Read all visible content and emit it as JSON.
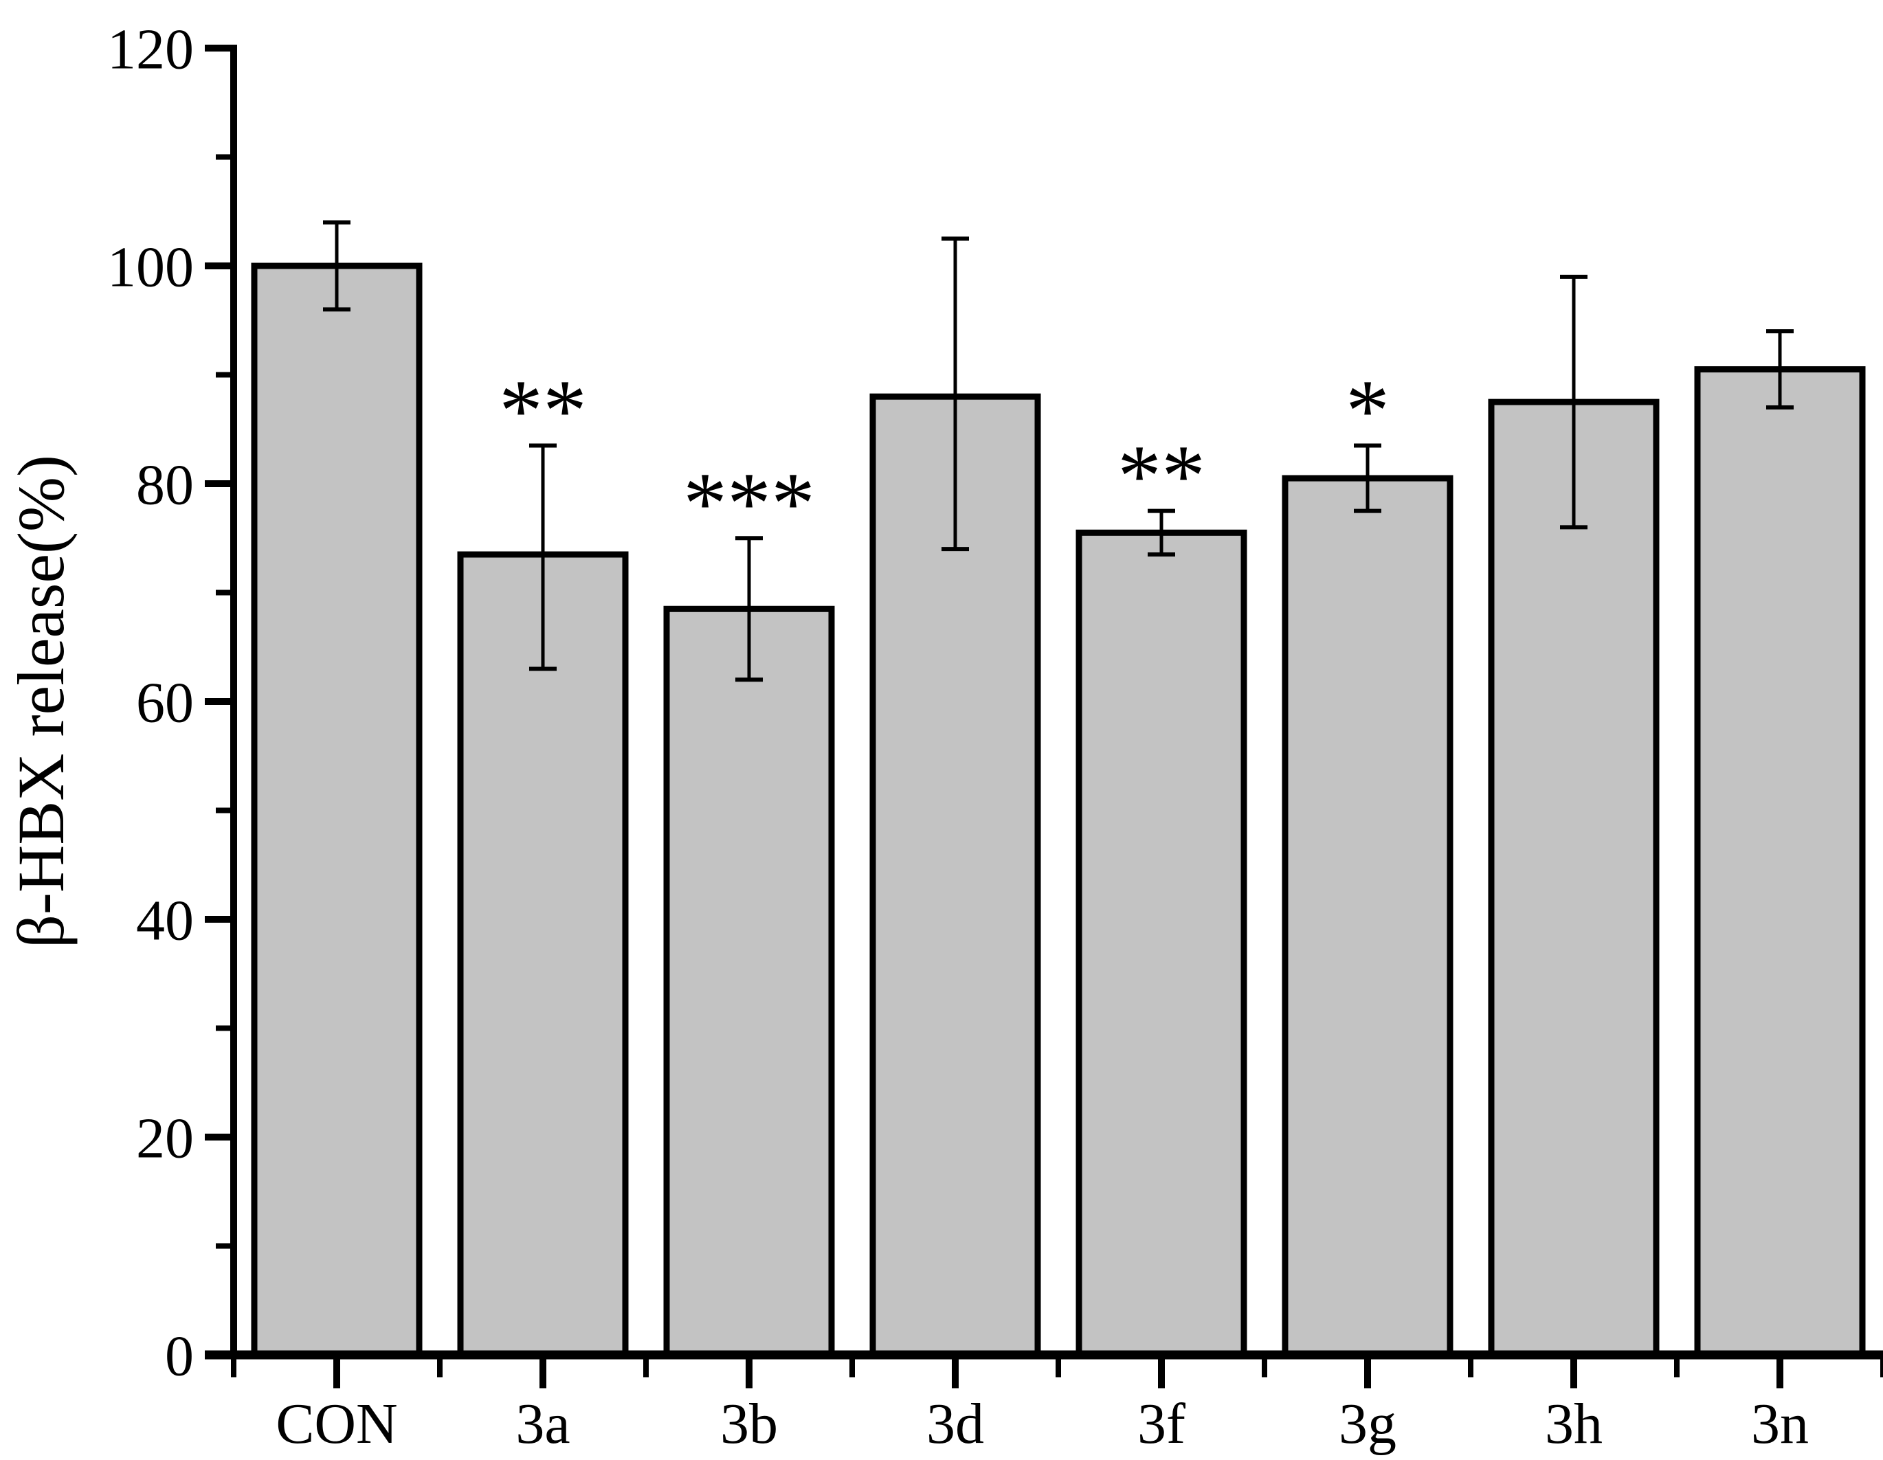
{
  "figure": {
    "background": "#ffffff",
    "bar_fill": "#c3c3c3",
    "line_color": "#000000"
  },
  "chart_data": {
    "type": "bar",
    "title": "",
    "xlabel": "",
    "ylabel": "β-HBX release(%)",
    "ylim": [
      0,
      120
    ],
    "ytick_interval": 20,
    "yminor_interval": 10,
    "ytick_labels": [
      "0",
      "20",
      "40",
      "60",
      "80",
      "100",
      "120"
    ],
    "grid": false,
    "legend": null,
    "categories": [
      "CON",
      "3a",
      "3b",
      "3d",
      "3f",
      "3g",
      "3h",
      "3n"
    ],
    "values": [
      100,
      73.5,
      68.5,
      88,
      75.5,
      80.5,
      87.5,
      90.5
    ],
    "errors_plus": [
      4,
      10,
      6.5,
      14.5,
      2,
      3,
      11.5,
      3.5
    ],
    "errors_minus": [
      4,
      10.5,
      6.5,
      14,
      2,
      3,
      11.5,
      3.5
    ],
    "significance": [
      "",
      "**",
      "***",
      "",
      "**",
      "*",
      "",
      ""
    ]
  }
}
